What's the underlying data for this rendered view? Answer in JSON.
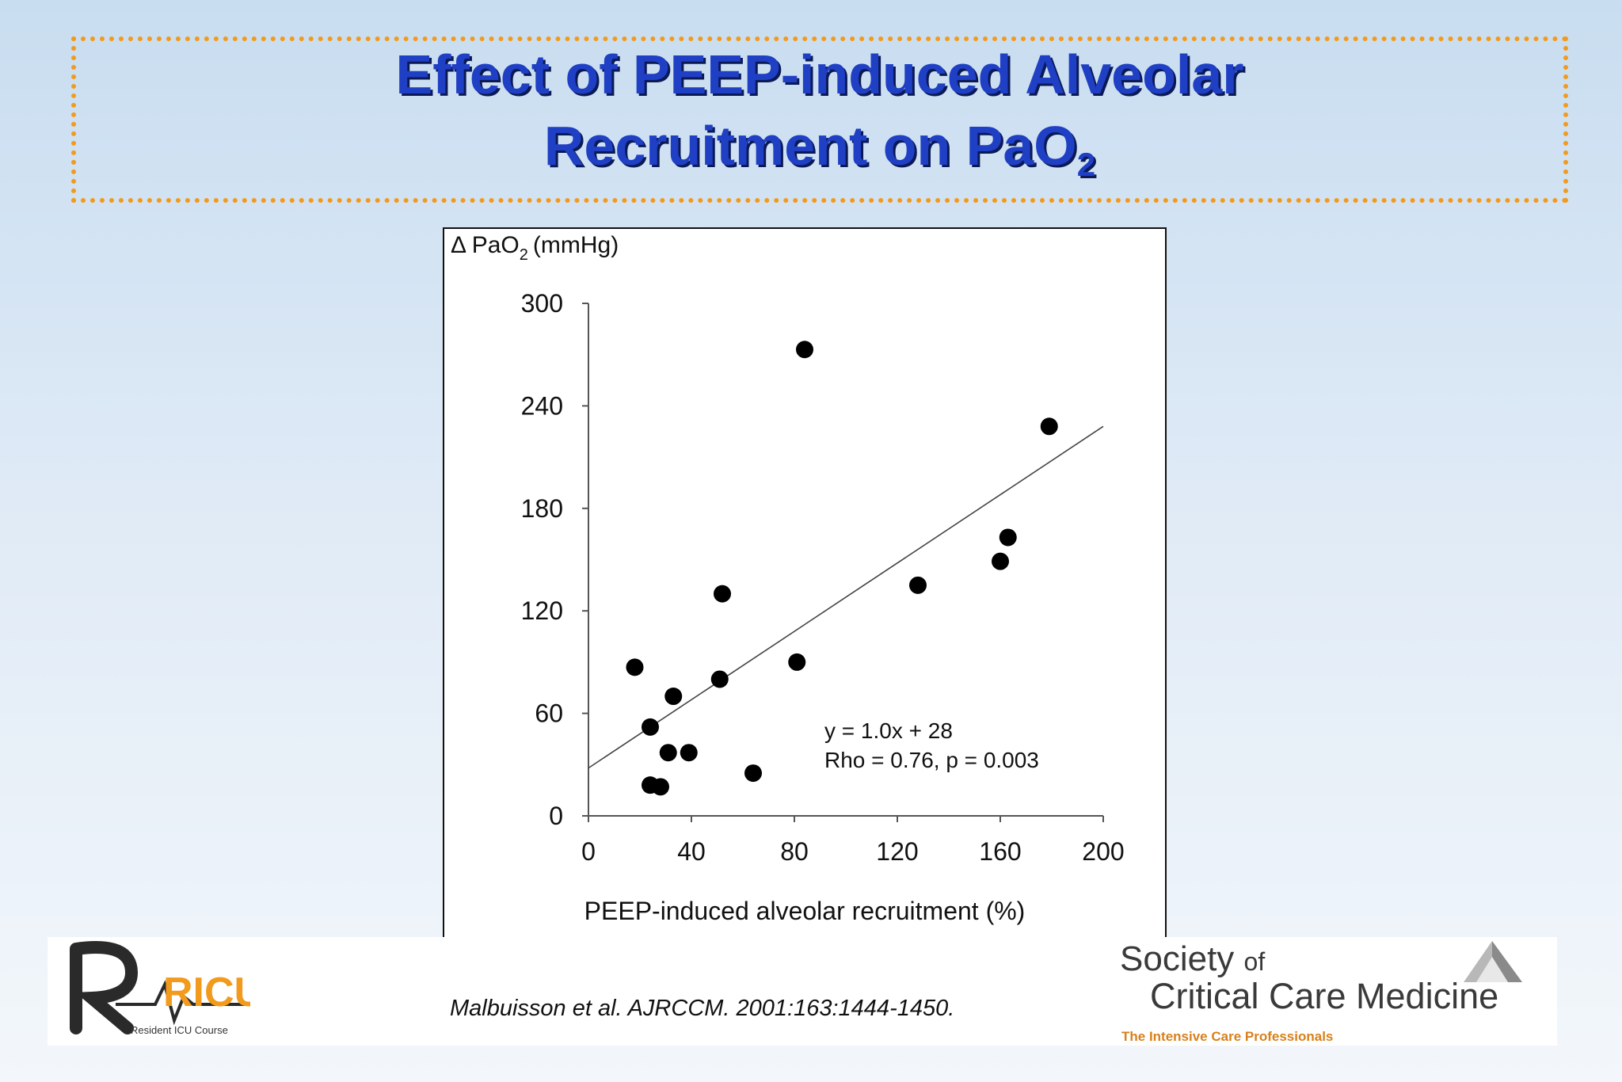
{
  "slide": {
    "title_line1": "Effect of PEEP-induced Alveolar",
    "title_line2": "Recruitment on PaO",
    "title_sub": "2",
    "citation": "Malbuisson et al. AJRCCM. 2001:163:1444-1450.",
    "accent_color": "#f29a1c",
    "title_color": "#1f3fc4"
  },
  "chart_data": {
    "type": "scatter",
    "title": "",
    "ylabel": "Δ PaO",
    "ylabel_sub": "2",
    "ylabel_unit": "(mmHg)",
    "xlabel": "PEEP-induced alveolar recruitment (%)",
    "xlim": [
      0,
      200
    ],
    "ylim": [
      0,
      300
    ],
    "x_ticks": [
      "0",
      "40",
      "80",
      "120",
      "160",
      "200"
    ],
    "y_ticks": [
      "0",
      "60",
      "120",
      "180",
      "240",
      "300"
    ],
    "grid": false,
    "points": [
      {
        "x": 18,
        "y": 87
      },
      {
        "x": 24,
        "y": 52
      },
      {
        "x": 24,
        "y": 18
      },
      {
        "x": 28,
        "y": 17
      },
      {
        "x": 31,
        "y": 37
      },
      {
        "x": 33,
        "y": 70
      },
      {
        "x": 39,
        "y": 37
      },
      {
        "x": 51,
        "y": 80
      },
      {
        "x": 52,
        "y": 130
      },
      {
        "x": 64,
        "y": 25
      },
      {
        "x": 81,
        "y": 90
      },
      {
        "x": 84,
        "y": 273
      },
      {
        "x": 128,
        "y": 135
      },
      {
        "x": 160,
        "y": 149
      },
      {
        "x": 163,
        "y": 163
      },
      {
        "x": 179,
        "y": 228
      }
    ],
    "regression": {
      "slope": 1.0,
      "intercept": 28,
      "x_start": 0,
      "x_end": 200
    },
    "annotation_line1": "y = 1.0x + 28",
    "annotation_line2": "Rho = 0.76, p = 0.003"
  },
  "footer": {
    "ricu_logo_text": "RICU",
    "ricu_subtitle": "Resident ICU Course",
    "sccm_society": "Society",
    "sccm_of": "of",
    "sccm_name": "Critical Care Medicine",
    "sccm_tagline": "The Intensive Care Professionals"
  }
}
